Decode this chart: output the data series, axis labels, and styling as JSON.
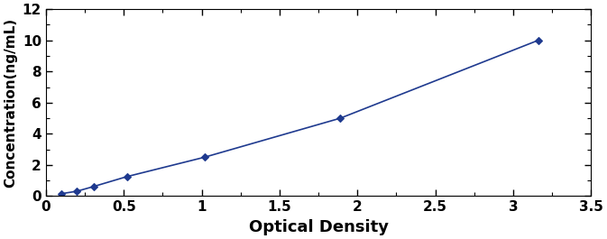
{
  "x": [
    0.1,
    0.2,
    0.31,
    0.52,
    1.02,
    1.89,
    3.16
  ],
  "y": [
    0.156,
    0.312,
    0.625,
    1.25,
    2.5,
    5.0,
    10.0
  ],
  "line_color": "#1F3A8F",
  "marker": "D",
  "marker_size": 4,
  "marker_facecolor": "#1F3A8F",
  "line_width": 1.2,
  "xlabel": "Optical Density",
  "ylabel": "Concentration(ng/mL)",
  "xlim": [
    0,
    3.5
  ],
  "ylim": [
    0,
    12
  ],
  "xtick_values": [
    0,
    0.5,
    1.0,
    1.5,
    2.0,
    2.5,
    3.0,
    3.5
  ],
  "xtick_labels": [
    "0",
    "0.5",
    "1",
    "1.5",
    "2",
    "2.5",
    "3",
    "3.5"
  ],
  "yticks": [
    0,
    2,
    4,
    6,
    8,
    10,
    12
  ],
  "xlabel_fontsize": 13,
  "ylabel_fontsize": 11,
  "tick_fontsize": 11,
  "xlabel_fontweight": "bold",
  "ylabel_fontweight": "bold",
  "tick_fontweight": "bold",
  "figure_facecolor": "#FFFFFF",
  "axes_facecolor": "#FFFFFF"
}
